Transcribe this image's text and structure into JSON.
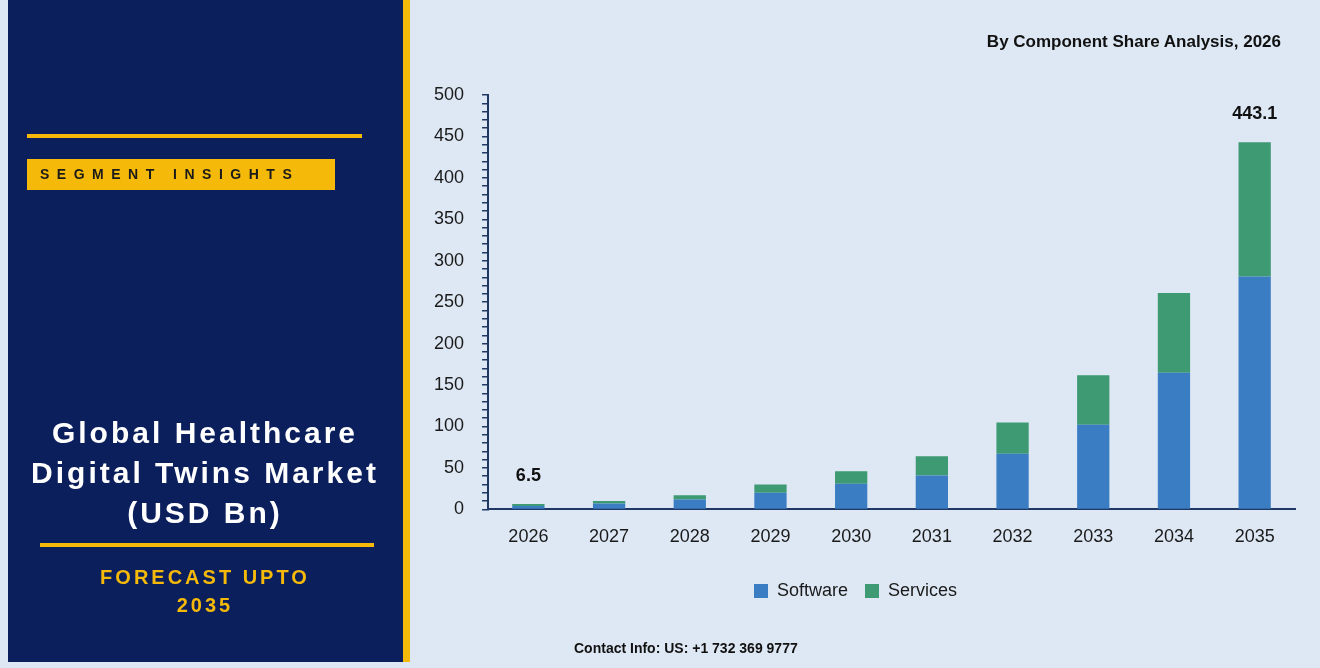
{
  "chart_data": {
    "type": "bar",
    "title": "Global Healthcare Digital Twins Market (USD Bn)",
    "subtitle": "By Component Share Analysis, 2026",
    "categories": [
      "2026",
      "2027",
      "2028",
      "2029",
      "2030",
      "2031",
      "2032",
      "2033",
      "2034",
      "2035"
    ],
    "series": [
      {
        "name": "Software",
        "color": "#3a7dc3",
        "values": [
          4,
          7,
          12,
          20,
          31,
          41,
          67,
          102,
          165,
          281
        ]
      },
      {
        "name": "Services",
        "color": "#3d9a72",
        "values": [
          2.5,
          3,
          5,
          10,
          15,
          23,
          38,
          60,
          96,
          162.1
        ]
      }
    ],
    "stacked": true,
    "ylim": [
      0,
      500
    ],
    "yticks": [
      0,
      {
        "value": 10,
        "label": null
      },
      {
        "value": 20,
        "label": null
      },
      {
        "value": 30,
        "label": null
      },
      {
        "value": 40,
        "label": null
      },
      50,
      {
        "value": 60,
        "label": null
      },
      {
        "value": 70,
        "label": null
      },
      {
        "value": 80,
        "label": null
      },
      {
        "value": 90,
        "label": null
      },
      100,
      {
        "value": 110,
        "label": null
      },
      {
        "value": 120,
        "label": null
      },
      {
        "value": 130,
        "label": null
      },
      {
        "value": 140,
        "label": null
      },
      150,
      {
        "value": 160,
        "label": null
      },
      {
        "value": 170,
        "label": null
      },
      {
        "value": 180,
        "label": null
      },
      {
        "value": 190,
        "label": null
      },
      200,
      {
        "value": 210,
        "label": null
      },
      {
        "value": 220,
        "label": null
      },
      {
        "value": 230,
        "label": null
      },
      {
        "value": 240,
        "label": null
      },
      250,
      {
        "value": 260,
        "label": null
      },
      {
        "value": 270,
        "label": null
      },
      {
        "value": 280,
        "label": null
      },
      {
        "value": 290,
        "label": null
      },
      300,
      {
        "value": 310,
        "label": null
      },
      {
        "value": 320,
        "label": null
      },
      {
        "value": 330,
        "label": null
      },
      {
        "value": 340,
        "label": null
      },
      350,
      {
        "value": 360,
        "label": null
      },
      {
        "value": 370,
        "label": null
      },
      {
        "value": 380,
        "label": null
      },
      {
        "value": 390,
        "label": null
      },
      400,
      {
        "value": 410,
        "label": null
      },
      {
        "value": 420,
        "label": null
      },
      {
        "value": 430,
        "label": null
      },
      {
        "value": 440,
        "label": null
      },
      450,
      {
        "value": 460,
        "label": null
      },
      {
        "value": 470,
        "label": null
      },
      {
        "value": 480,
        "label": null
      },
      {
        "value": 490,
        "label": null
      },
      500
    ],
    "totals": [
      "6.5",
      null,
      null,
      null,
      null,
      null,
      null,
      null,
      null,
      "443.1"
    ],
    "legend": "bottom",
    "annotations": [
      "SEGMENT INSIGHTS",
      "FORECAST UPTO 2035",
      "Contact Info: US: +1 732 369 9777"
    ]
  }
}
